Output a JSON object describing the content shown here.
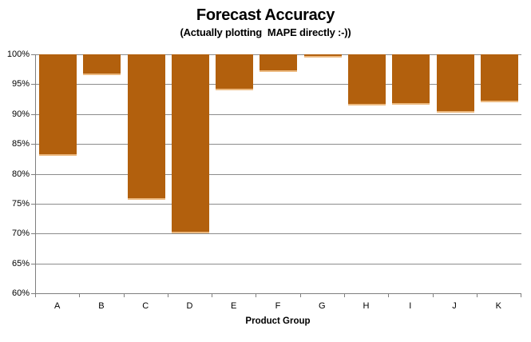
{
  "chart_data": {
    "type": "bar",
    "title": "Forecast Accuracy",
    "subtitle": "(Actually plotting  MAPE directly :-))",
    "xlabel": "Product Group",
    "ylabel": "",
    "categories": [
      "A",
      "B",
      "C",
      "D",
      "E",
      "F",
      "G",
      "H",
      "I",
      "J",
      "K"
    ],
    "values": [
      83.0,
      96.5,
      75.7,
      70.0,
      94.0,
      97.0,
      99.5,
      91.5,
      91.6,
      90.3,
      92.0
    ],
    "series_note": "bars hang downward from 100% baseline (accuracy = 100% - MAPE)",
    "ylim": [
      60,
      100
    ],
    "ytick_step": 5,
    "ytick_labels": [
      "100%",
      "95%",
      "90%",
      "85%",
      "80%",
      "75%",
      "70%",
      "65%",
      "60%"
    ],
    "ytick_format": "percent",
    "grid": true,
    "legend": false,
    "colors": {
      "bar_fill": "#B2600D",
      "bar_bottom_edge": "#ECB97F",
      "gridline": "#8C8C8C",
      "axis": "#7F7F7F",
      "text": "#000000",
      "background": "#FFFFFF"
    }
  }
}
